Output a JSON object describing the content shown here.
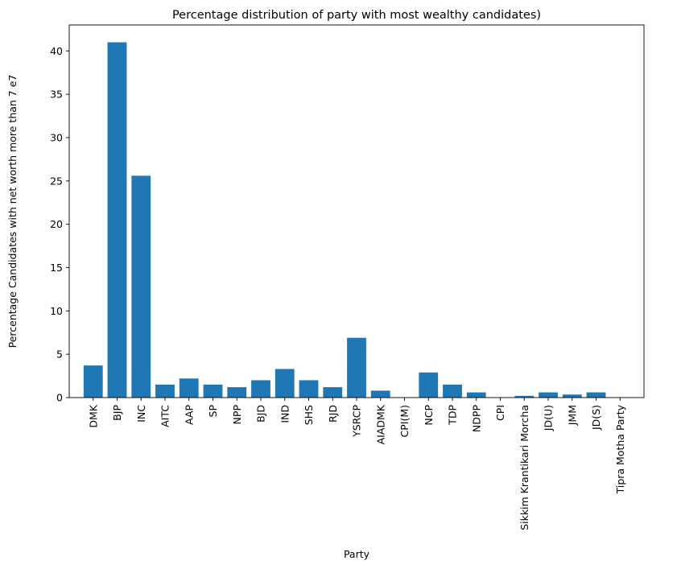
{
  "chart_data": {
    "type": "bar",
    "title": "Percentage distribution of party with most wealthy candidates)",
    "xlabel": "Party",
    "ylabel": "Percentage Candidates with net worth more than 7 e7",
    "categories": [
      "DMK",
      "BJP",
      "INC",
      "AITC",
      "AAP",
      "SP",
      "NPP",
      "BJD",
      "IND",
      "SHS",
      "RJD",
      "YSRCP",
      "AIADMK",
      "CPI(M)",
      "NCP",
      "TDP",
      "NDPP",
      "CPI",
      "Sikkim Krantikari Morcha",
      "JD(U)",
      "JMM",
      "JD(S)",
      "Tipra Motha Party"
    ],
    "values": [
      3.7,
      41.0,
      25.6,
      1.5,
      2.2,
      1.5,
      1.2,
      2.0,
      3.3,
      2.0,
      1.2,
      6.9,
      0.8,
      0.0,
      2.9,
      1.5,
      0.6,
      0.0,
      0.2,
      0.6,
      0.35,
      0.6,
      0.0
    ],
    "ylim": [
      0,
      43
    ],
    "yticks": [
      0,
      5,
      10,
      15,
      20,
      25,
      30,
      35,
      40
    ],
    "grid": false,
    "bar_color": "#1f77b4"
  }
}
